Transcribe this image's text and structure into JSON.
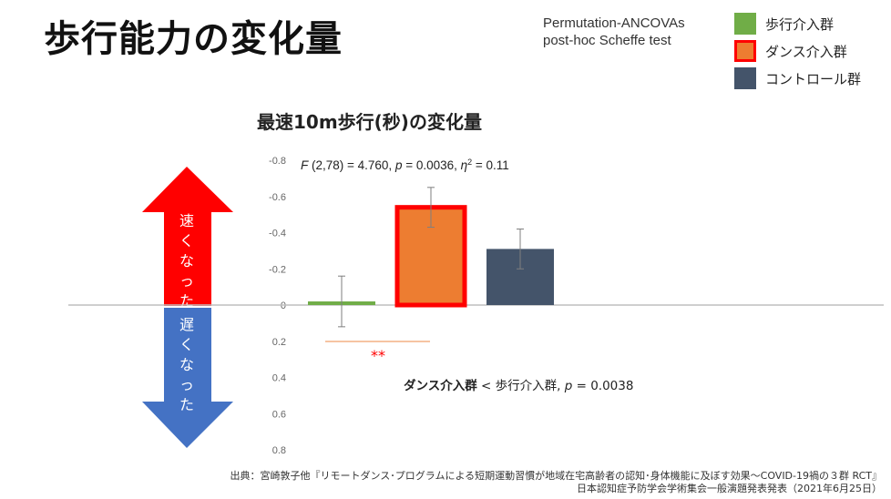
{
  "title": "歩行能力の変化量",
  "test_note": {
    "line1": "Permutation-ANCOVAs",
    "line2": "post-hoc Scheffe test"
  },
  "legend": [
    {
      "label": "歩行介入群",
      "color": "#70ad47",
      "border": "#70ad47"
    },
    {
      "label": "ダンス介入群",
      "color": "#ed7d31",
      "border": "#ff0000"
    },
    {
      "label": "コントロール群",
      "color": "#44546a",
      "border": "#44546a"
    }
  ],
  "arrows": {
    "up_label": "速くなった",
    "down_label": "遅くなった",
    "up_color": "#ff0000",
    "down_color": "#4472c4"
  },
  "chart_data": {
    "type": "bar",
    "title": "最速10m歩行(秒)の変化量",
    "categories": [
      "歩行介入群",
      "ダンス介入群",
      "コントロール群"
    ],
    "values": [
      -0.02,
      -0.54,
      -0.31
    ],
    "error_bars": [
      0.14,
      0.11,
      0.11
    ],
    "colors": [
      "#70ad47",
      "#ed7d31",
      "#44546a"
    ],
    "highlight_border": [
      null,
      "#ff0000",
      null
    ],
    "y_ticks": [
      -0.8,
      -0.6,
      -0.4,
      -0.2,
      0,
      0.2,
      0.4,
      0.6,
      0.8
    ],
    "y_tick_labels": [
      "-0.8",
      "-0.6",
      "-0.4",
      "-0.2",
      "0",
      "0.2",
      "0.4",
      "0.6",
      "0.8"
    ],
    "ylim": [
      -0.8,
      0.8
    ],
    "y_inverted": true,
    "stats_annotation": {
      "f_label": "F",
      "f_value": " (2,78) = 4.760, ",
      "p_label": "p",
      "p_value": " = 0.0036, ",
      "eta_label": "η",
      "eta_sup": "2",
      "eta_value": " = 0.11"
    },
    "significance": {
      "marker": "**",
      "color": "#ff0000",
      "between": [
        0,
        1
      ]
    },
    "comparison": {
      "group_a": "ダンス介入群",
      "relation": " < 歩行介入群, ",
      "p_label": "p",
      "p_value": " = 0.0038"
    }
  },
  "source": {
    "line1": "出典：宮崎敦子他『リモートダンス･プログラムによる短期運動習慣が地域在宅高齢者の認知･身体機能に及ぼす効果～COVID-19禍の３群 RCT』",
    "line2": "日本認知症予防学会学術集会一般演題発表発表（2021年6月25日）"
  }
}
